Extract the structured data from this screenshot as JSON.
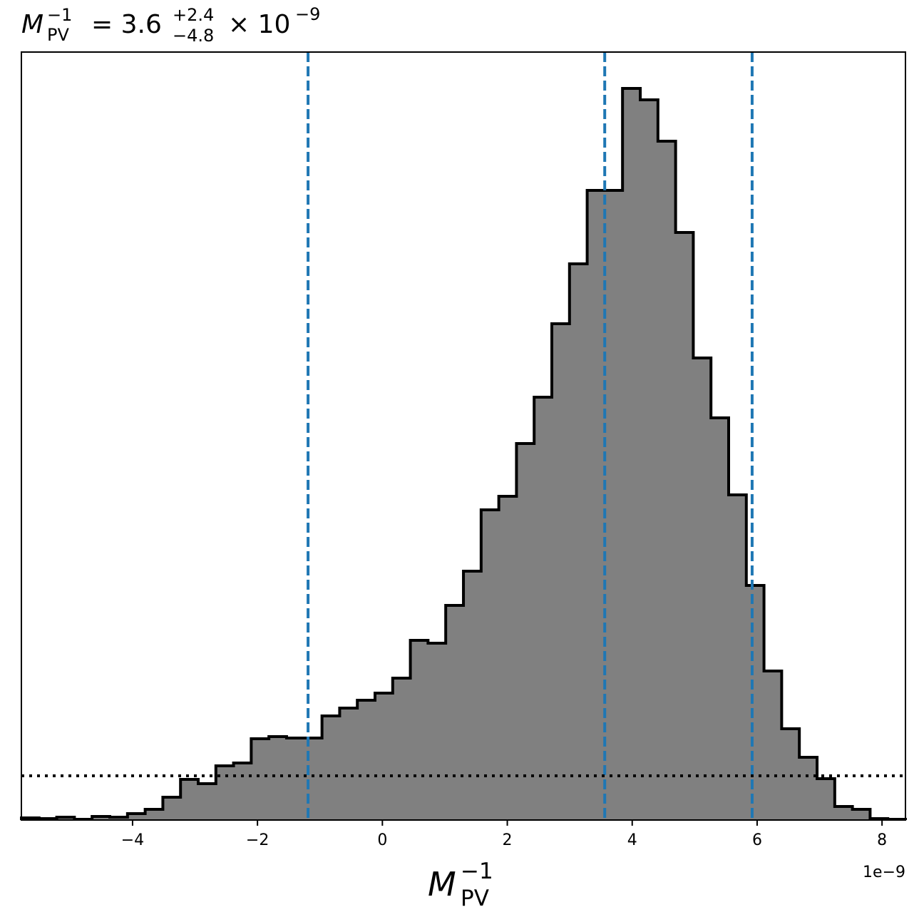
{
  "chart_data": {
    "type": "histogram",
    "title": {
      "base": "M",
      "sup": "−1",
      "sub": "PV",
      "eq": "= 3.6",
      "upper": "+2.4",
      "lower": "−4.8",
      "factor": "× 10",
      "exponent": "−9"
    },
    "xlabel": {
      "base": "M",
      "sup": "−1",
      "sub": "PV"
    },
    "x_offset_label": "1e−9",
    "bins": [
      -5.78,
      -5.497,
      -5.214,
      -4.931,
      -4.648,
      -4.365,
      -4.081,
      -3.798,
      -3.515,
      -3.232,
      -2.949,
      -2.666,
      -2.383,
      -2.1,
      -1.817,
      -1.534,
      -1.25,
      -0.967,
      -0.684,
      -0.401,
      -0.118,
      0.165,
      0.448,
      0.731,
      1.014,
      1.298,
      1.581,
      1.864,
      2.147,
      2.43,
      2.713,
      2.996,
      3.279,
      3.562,
      3.845,
      4.129,
      4.412,
      4.695,
      4.978,
      5.261,
      5.544,
      5.827,
      6.11,
      6.393,
      6.676,
      6.96,
      7.243,
      7.526,
      7.809,
      8.092,
      8.375
    ],
    "values": [
      3,
      2,
      4,
      1,
      5,
      4,
      9,
      15,
      32,
      57,
      51,
      76,
      80,
      114,
      117,
      115,
      115,
      146,
      157,
      168,
      178,
      199,
      252,
      248,
      301,
      349,
      435,
      454,
      528,
      593,
      696,
      780,
      883,
      883,
      1026,
      1010,
      952,
      824,
      648,
      564,
      456,
      329,
      209,
      128,
      88,
      58,
      19,
      15,
      2,
      1
    ],
    "color": "#808080",
    "edge_color": "#000000",
    "xlim": [
      -5.78,
      8.375
    ],
    "ylim": [
      0,
      1077
    ],
    "xticks": [
      {
        "value": -4,
        "label": "−4"
      },
      {
        "value": -2,
        "label": "−2"
      },
      0,
      2,
      4,
      6,
      8
    ],
    "vlines": [
      -1.19,
      3.56,
      5.92
    ],
    "vline_color": "#1f77b4",
    "hline": 62,
    "hline_color": "#000000"
  }
}
